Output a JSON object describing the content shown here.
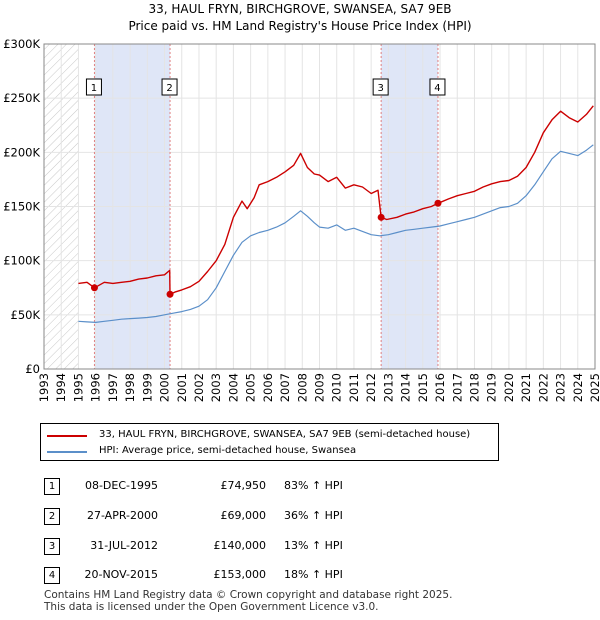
{
  "title_line1": "33, HAUL FRYN, BIRCHGROVE, SWANSEA, SA7 9EB",
  "title_line2": "Price paid vs. HM Land Registry's House Price Index (HPI)",
  "legend": {
    "property_label": "33, HAUL FRYN, BIRCHGROVE, SWANSEA, SA7 9EB (semi-detached house)",
    "hpi_label": "HPI: Average price, semi-detached house, Swansea"
  },
  "colors": {
    "property": "#cc0000",
    "hpi": "#5b8fc9",
    "shade": "#dfe6f7",
    "marker_line": "#e08080"
  },
  "sales": [
    {
      "num": "1",
      "date": "08-DEC-1995",
      "price": "£74,950",
      "hpi": "83% ↑ HPI"
    },
    {
      "num": "2",
      "date": "27-APR-2000",
      "price": "£69,000",
      "hpi": "36% ↑ HPI"
    },
    {
      "num": "3",
      "date": "31-JUL-2012",
      "price": "£140,000",
      "hpi": "13% ↑ HPI"
    },
    {
      "num": "4",
      "date": "20-NOV-2015",
      "price": "£153,000",
      "hpi": "18% ↑ HPI"
    }
  ],
  "footer": {
    "line1": "Contains HM Land Registry data © Crown copyright and database right 2025.",
    "line2": "This data is licensed under the Open Government Licence v3.0."
  },
  "chart_data": {
    "type": "line",
    "title": "Price paid vs. HM Land Registry's House Price Index (HPI)",
    "xlabel": "",
    "ylabel": "",
    "xlim": [
      1993,
      2025
    ],
    "ylim": [
      0,
      300000
    ],
    "ytick_labels": [
      "£0",
      "£50K",
      "£100K",
      "£150K",
      "£200K",
      "£250K",
      "£300K"
    ],
    "ytick_values": [
      0,
      50000,
      100000,
      150000,
      200000,
      250000,
      300000
    ],
    "xtick_labels": [
      "1993",
      "1994",
      "1995",
      "1996",
      "1997",
      "1998",
      "1999",
      "2000",
      "2001",
      "2002",
      "2003",
      "2004",
      "2005",
      "2006",
      "2007",
      "2008",
      "2009",
      "2010",
      "2011",
      "2012",
      "2013",
      "2014",
      "2015",
      "2016",
      "2017",
      "2018",
      "2019",
      "2020",
      "2021",
      "2022",
      "2023",
      "2024",
      "2025"
    ],
    "xtick_values": [
      1993,
      1994,
      1995,
      1996,
      1997,
      1998,
      1999,
      2000,
      2001,
      2002,
      2003,
      2004,
      2005,
      2006,
      2007,
      2008,
      2009,
      2010,
      2011,
      2012,
      2013,
      2014,
      2015,
      2016,
      2017,
      2018,
      2019,
      2020,
      2021,
      2022,
      2023,
      2024,
      2025
    ],
    "hatched_range": [
      1993,
      1995.0
    ],
    "shaded_ranges": [
      [
        1995.93,
        2000.32
      ],
      [
        2012.58,
        2015.88
      ]
    ],
    "sale_points": [
      {
        "label": "1",
        "x": 1995.93,
        "y": 74950
      },
      {
        "label": "2",
        "x": 2000.32,
        "y": 69000
      },
      {
        "label": "3",
        "x": 2012.58,
        "y": 140000
      },
      {
        "label": "4",
        "x": 2015.88,
        "y": 153000
      }
    ],
    "series": [
      {
        "name": "33, HAUL FRYN, BIRCHGROVE, SWANSEA, SA7 9EB (semi-detached house)",
        "x": [
          1995.0,
          1995.5,
          1995.93,
          1996.5,
          1997.0,
          1997.5,
          1998.0,
          1998.5,
          1999.0,
          1999.5,
          2000.0,
          2000.3,
          2000.32,
          2000.6,
          2001.0,
          2001.5,
          2002.0,
          2002.5,
          2003.0,
          2003.5,
          2004.0,
          2004.5,
          2004.8,
          2005.2,
          2005.5,
          2006.0,
          2006.5,
          2007.0,
          2007.5,
          2007.9,
          2008.3,
          2008.7,
          2009.0,
          2009.5,
          2010.0,
          2010.5,
          2011.0,
          2011.5,
          2012.0,
          2012.4,
          2012.58,
          2012.9,
          2013.5,
          2014.0,
          2014.5,
          2015.0,
          2015.5,
          2015.88,
          2016.5,
          2017.0,
          2017.5,
          2018.0,
          2018.5,
          2019.0,
          2019.5,
          2020.0,
          2020.5,
          2021.0,
          2021.5,
          2022.0,
          2022.5,
          2023.0,
          2023.5,
          2024.0,
          2024.5,
          2024.9
        ],
        "values": [
          79000,
          80000,
          74950,
          80000,
          79000,
          80000,
          81000,
          83000,
          84000,
          86000,
          87000,
          91000,
          69000,
          71000,
          73000,
          76000,
          81000,
          90000,
          100000,
          115000,
          140000,
          155000,
          148000,
          158000,
          170000,
          173000,
          177000,
          182000,
          188000,
          199000,
          186000,
          180000,
          179000,
          173000,
          177000,
          167000,
          170000,
          168000,
          162000,
          165000,
          140000,
          138000,
          140000,
          143000,
          145000,
          148000,
          150000,
          153000,
          157000,
          160000,
          162000,
          164000,
          168000,
          171000,
          173000,
          174000,
          178000,
          186000,
          200000,
          218000,
          230000,
          238000,
          232000,
          228000,
          235000,
          243000
        ]
      },
      {
        "name": "HPI: Average price, semi-detached house, Swansea",
        "x": [
          1995.0,
          1995.5,
          1996.0,
          1996.5,
          1997.0,
          1997.5,
          1998.0,
          1998.5,
          1999.0,
          1999.5,
          2000.0,
          2000.5,
          2001.0,
          2001.5,
          2002.0,
          2002.5,
          2003.0,
          2003.5,
          2004.0,
          2004.5,
          2005.0,
          2005.5,
          2006.0,
          2006.5,
          2007.0,
          2007.5,
          2007.9,
          2008.3,
          2008.7,
          2009.0,
          2009.5,
          2010.0,
          2010.5,
          2011.0,
          2011.5,
          2012.0,
          2012.5,
          2013.0,
          2013.5,
          2014.0,
          2014.5,
          2015.0,
          2015.5,
          2016.0,
          2016.5,
          2017.0,
          2017.5,
          2018.0,
          2018.5,
          2019.0,
          2019.5,
          2020.0,
          2020.5,
          2021.0,
          2021.5,
          2022.0,
          2022.5,
          2023.0,
          2023.5,
          2024.0,
          2024.5,
          2024.9
        ],
        "values": [
          44000,
          43500,
          43000,
          44000,
          45000,
          46000,
          46500,
          47000,
          47500,
          48500,
          50000,
          51500,
          53000,
          55000,
          58000,
          64000,
          75000,
          90000,
          105000,
          117000,
          123000,
          126000,
          128000,
          131000,
          135000,
          141000,
          146000,
          141000,
          135000,
          131000,
          130000,
          133000,
          128000,
          130000,
          127000,
          124000,
          123000,
          124000,
          126000,
          128000,
          129000,
          130000,
          131000,
          132000,
          134000,
          136000,
          138000,
          140000,
          143000,
          146000,
          149000,
          150000,
          153000,
          160000,
          170000,
          182000,
          194000,
          201000,
          199000,
          197000,
          202000,
          207000
        ]
      }
    ]
  }
}
